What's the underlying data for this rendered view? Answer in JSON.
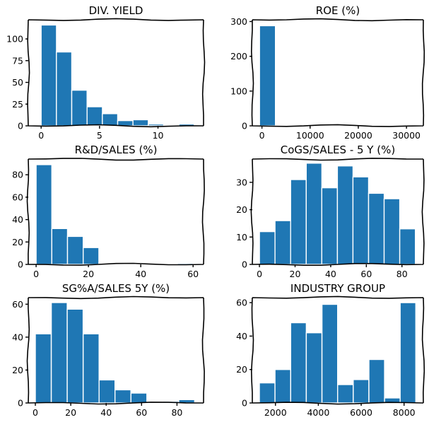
{
  "chart_data": [
    {
      "type": "bar",
      "title": "DIV. YIELD",
      "xlim": [
        -1.1,
        13.9
      ],
      "ylim": [
        0,
        122
      ],
      "xticks": [
        0,
        5,
        10
      ],
      "yticks": [
        0,
        25,
        50,
        75,
        100
      ],
      "bins": [
        {
          "x0": 0.0,
          "x1": 1.31,
          "count": 116
        },
        {
          "x0": 1.31,
          "x1": 2.62,
          "count": 85
        },
        {
          "x0": 2.62,
          "x1": 3.93,
          "count": 41
        },
        {
          "x0": 3.93,
          "x1": 5.24,
          "count": 22
        },
        {
          "x0": 5.24,
          "x1": 6.55,
          "count": 14
        },
        {
          "x0": 6.55,
          "x1": 7.86,
          "count": 6
        },
        {
          "x0": 7.86,
          "x1": 9.17,
          "count": 7
        },
        {
          "x0": 9.17,
          "x1": 10.48,
          "count": 2
        },
        {
          "x0": 10.48,
          "x1": 11.79,
          "count": 0
        },
        {
          "x0": 11.79,
          "x1": 13.1,
          "count": 2
        }
      ]
    },
    {
      "type": "bar",
      "title": "ROE (%)",
      "xlim": [
        -2000,
        33500
      ],
      "ylim": [
        0,
        305
      ],
      "xticks": [
        0,
        10000,
        20000,
        30000
      ],
      "yticks": [
        0,
        100,
        200,
        300
      ],
      "bins": [
        {
          "x0": -500,
          "x1": 2800,
          "count": 288
        },
        {
          "x0": 2800,
          "x1": 6100,
          "count": 0
        },
        {
          "x0": 6100,
          "x1": 9400,
          "count": 0
        },
        {
          "x0": 9400,
          "x1": 12700,
          "count": 0
        },
        {
          "x0": 12700,
          "x1": 16000,
          "count": 0
        },
        {
          "x0": 16000,
          "x1": 19300,
          "count": 0
        },
        {
          "x0": 19300,
          "x1": 22600,
          "count": 0
        },
        {
          "x0": 22600,
          "x1": 25900,
          "count": 0
        },
        {
          "x0": 25900,
          "x1": 29200,
          "count": 0
        },
        {
          "x0": 29200,
          "x1": 32500,
          "count": 1
        }
      ]
    },
    {
      "type": "bar",
      "title": "R&D/SALES (%)",
      "xlim": [
        -3,
        64
      ],
      "ylim": [
        0,
        94
      ],
      "xticks": [
        0,
        20,
        40,
        60
      ],
      "yticks": [
        0,
        20,
        40,
        60,
        80
      ],
      "bins": [
        {
          "x0": 0.0,
          "x1": 6.0,
          "count": 89
        },
        {
          "x0": 6.0,
          "x1": 12.0,
          "count": 32
        },
        {
          "x0": 12.0,
          "x1": 18.0,
          "count": 25
        },
        {
          "x0": 18.0,
          "x1": 24.0,
          "count": 15
        },
        {
          "x0": 24.0,
          "x1": 30.0,
          "count": 1
        },
        {
          "x0": 30.0,
          "x1": 36.0,
          "count": 0
        },
        {
          "x0": 36.0,
          "x1": 42.0,
          "count": 0
        },
        {
          "x0": 42.0,
          "x1": 48.0,
          "count": 0
        },
        {
          "x0": 48.0,
          "x1": 54.0,
          "count": 0
        },
        {
          "x0": 54.0,
          "x1": 60.0,
          "count": 1
        }
      ]
    },
    {
      "type": "bar",
      "title": "CoGS/SALES - 5 Y (%)",
      "xlim": [
        -4,
        92
      ],
      "ylim": [
        0,
        38.5
      ],
      "xticks": [
        0,
        20,
        40,
        60,
        80
      ],
      "yticks": [
        0,
        10,
        20,
        30
      ],
      "bins": [
        {
          "x0": 0.0,
          "x1": 8.75,
          "count": 12
        },
        {
          "x0": 8.75,
          "x1": 17.5,
          "count": 16
        },
        {
          "x0": 17.5,
          "x1": 26.25,
          "count": 31
        },
        {
          "x0": 26.25,
          "x1": 35.0,
          "count": 37
        },
        {
          "x0": 35.0,
          "x1": 43.75,
          "count": 28
        },
        {
          "x0": 43.75,
          "x1": 52.5,
          "count": 36
        },
        {
          "x0": 52.5,
          "x1": 61.25,
          "count": 32
        },
        {
          "x0": 61.25,
          "x1": 70.0,
          "count": 26
        },
        {
          "x0": 70.0,
          "x1": 78.75,
          "count": 24
        },
        {
          "x0": 78.75,
          "x1": 87.5,
          "count": 13
        }
      ]
    },
    {
      "type": "bar",
      "title": "SG%A/SALES 5Y (%)",
      "xlim": [
        -4,
        95
      ],
      "ylim": [
        0,
        64
      ],
      "xticks": [
        0,
        20,
        40,
        60,
        80
      ],
      "yticks": [
        0,
        20,
        40,
        60
      ],
      "bins": [
        {
          "x0": 0.0,
          "x1": 9.0,
          "count": 42
        },
        {
          "x0": 9.0,
          "x1": 18.0,
          "count": 61
        },
        {
          "x0": 18.0,
          "x1": 27.0,
          "count": 57
        },
        {
          "x0": 27.0,
          "x1": 36.0,
          "count": 42
        },
        {
          "x0": 36.0,
          "x1": 45.0,
          "count": 14
        },
        {
          "x0": 45.0,
          "x1": 54.0,
          "count": 8
        },
        {
          "x0": 54.0,
          "x1": 63.0,
          "count": 6
        },
        {
          "x0": 63.0,
          "x1": 72.0,
          "count": 0
        },
        {
          "x0": 72.0,
          "x1": 81.0,
          "count": 1
        },
        {
          "x0": 81.0,
          "x1": 90.0,
          "count": 2
        }
      ]
    },
    {
      "type": "bar",
      "title": "INDUSTRY GROUP",
      "xlim": [
        920,
        8900
      ],
      "ylim": [
        0,
        63
      ],
      "xticks": [
        2000,
        4000,
        6000,
        8000
      ],
      "yticks": [
        0,
        20,
        40,
        60
      ],
      "bins": [
        {
          "x0": 1250,
          "x1": 1980,
          "count": 12
        },
        {
          "x0": 1980,
          "x1": 2710,
          "count": 20
        },
        {
          "x0": 2710,
          "x1": 3440,
          "count": 48
        },
        {
          "x0": 3440,
          "x1": 4170,
          "count": 42
        },
        {
          "x0": 4170,
          "x1": 4900,
          "count": 59
        },
        {
          "x0": 4900,
          "x1": 5630,
          "count": 11
        },
        {
          "x0": 5630,
          "x1": 6360,
          "count": 14
        },
        {
          "x0": 6360,
          "x1": 7090,
          "count": 26
        },
        {
          "x0": 7090,
          "x1": 7820,
          "count": 3
        },
        {
          "x0": 7820,
          "x1": 8550,
          "count": 60
        }
      ]
    }
  ]
}
